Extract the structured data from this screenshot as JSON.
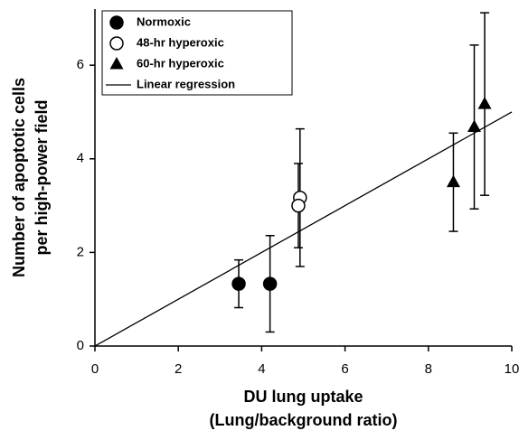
{
  "chart_data": {
    "type": "scatter",
    "xlabel": [
      "DU lung uptake",
      "(Lung/background ratio)"
    ],
    "ylabel": [
      "Number of apoptotic cells",
      "per high-power field"
    ],
    "xlim": [
      0,
      10
    ],
    "xticks": [
      0,
      2,
      4,
      6,
      8,
      10
    ],
    "ylim": [
      0,
      7.2
    ],
    "yticks": [
      0,
      2,
      4,
      6
    ],
    "legend": "upper left",
    "series": [
      {
        "name": "Normoxic",
        "marker": "circle",
        "color": "#000000",
        "x": [
          3.45,
          4.2
        ],
        "values": [
          1.33,
          1.33
        ],
        "errors": [
          0.51,
          1.03
        ]
      },
      {
        "name": "48-hr hyperoxic",
        "marker": "open-circle",
        "color": "#000000",
        "x": [
          4.92,
          4.88
        ],
        "values": [
          3.17,
          3.0
        ],
        "errors": [
          1.47,
          0.9
        ]
      },
      {
        "name": "60-hr hyperoxic",
        "marker": "triangle",
        "color": "#000000",
        "x": [
          8.6,
          9.1,
          9.35
        ],
        "values": [
          3.5,
          4.68,
          5.17
        ],
        "errors": [
          1.05,
          1.75,
          1.95
        ]
      }
    ],
    "regression": {
      "name": "Linear regression",
      "color": "#000000",
      "x": [
        0,
        10
      ],
      "values": [
        0,
        5.0
      ]
    }
  }
}
